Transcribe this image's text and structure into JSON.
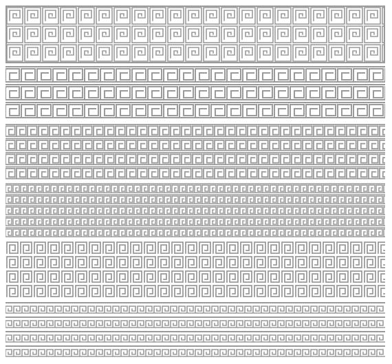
{
  "colors": {
    "background": "#ffffff",
    "pattern": "#9a9a9a"
  },
  "panels": [
    {
      "name": "key-squares-band",
      "motif": "square-key-tile",
      "rows": 3
    },
    {
      "name": "meander-band-large",
      "motif": "running-meander",
      "rows": 3
    },
    {
      "name": "meander-band-interlocked",
      "motif": "interlocked-meander",
      "rows": 4
    },
    {
      "name": "meander-band-fine",
      "motif": "fine-meander",
      "rows": 5
    },
    {
      "name": "spiral-squares-band",
      "motif": "square-spiral-tile",
      "rows": 4
    },
    {
      "name": "key-border-stripes",
      "motif": "key-border-stripe",
      "rows": 4
    }
  ]
}
